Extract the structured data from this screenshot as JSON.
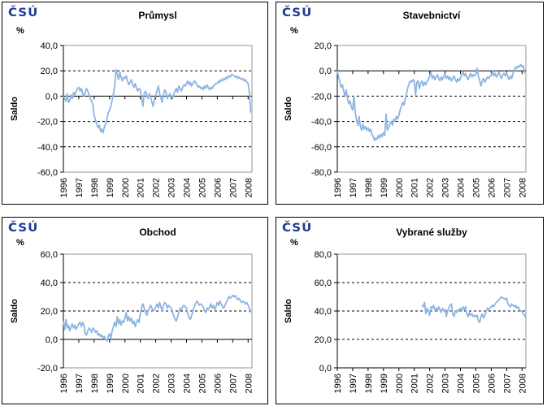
{
  "logo_text": "ČSÚ",
  "colors": {
    "line": "#8DB4E2",
    "logo": "#1F3A93",
    "plot_border": "#969696",
    "grid": "#000000",
    "axis": "#000000",
    "text": "#000000",
    "background": "#FFFFFF"
  },
  "chart_data": [
    {
      "type": "line",
      "title": "Průmysl",
      "unit": "%",
      "ylabel": "Saldo",
      "legend": "none",
      "grid": "horizontal-dashed",
      "ylim": [
        -60,
        40
      ],
      "yticks": [
        40,
        20,
        0,
        -20,
        -40,
        -60
      ],
      "ytick_labels": [
        "40,0",
        "20,0",
        "0,0",
        "-20,0",
        "-40,0",
        "-60,0"
      ],
      "xlim": [
        1996,
        2008.25
      ],
      "xticks": [
        1996,
        1997,
        1998,
        1999,
        2000,
        2001,
        2002,
        2003,
        2004,
        2005,
        2006,
        2007,
        2008
      ],
      "xtick_labels": [
        "1996",
        "1997",
        "1998",
        "1999",
        "2000",
        "2001",
        "2002",
        "2003",
        "2004",
        "2005",
        "2006",
        "2007",
        "2008"
      ],
      "series": [
        {
          "name": "Saldo (%)",
          "start": 1996.0,
          "step_years": 0.0833333,
          "values": [
            0,
            -2,
            -4,
            2,
            -5,
            -3,
            1,
            -2,
            3,
            1,
            4,
            6,
            7,
            4,
            6,
            2,
            0,
            3,
            6,
            4,
            1,
            -2,
            -4,
            -7,
            -15,
            -19,
            -22,
            -25,
            -23,
            -28,
            -26,
            -29,
            -24,
            -22,
            -18,
            -13,
            -11,
            -8,
            -3,
            2,
            8,
            21,
            17,
            13,
            19,
            15,
            12,
            15,
            14,
            16,
            12,
            9,
            11,
            13,
            9,
            7,
            10,
            6,
            4,
            6,
            5,
            -2,
            -8,
            2,
            4,
            1,
            -2,
            2,
            -1,
            -5,
            -8,
            -2,
            1,
            4,
            8,
            2,
            -1,
            -5,
            1,
            5,
            3,
            -2,
            0,
            2,
            0,
            -2,
            1,
            4,
            6,
            3,
            8,
            6,
            4,
            7,
            9,
            8,
            10,
            12,
            9,
            11,
            8,
            10,
            12,
            11,
            9,
            7,
            8,
            6,
            7,
            5,
            8,
            6,
            9,
            7,
            5,
            7,
            6,
            8,
            9,
            10,
            10,
            12,
            11,
            13,
            12,
            14,
            13,
            15,
            14,
            16,
            15,
            17,
            17,
            16,
            15,
            16,
            14,
            15,
            14,
            13,
            14,
            12,
            13,
            11,
            10,
            3,
            -13
          ]
        }
      ]
    },
    {
      "type": "line",
      "title": "Stavebnictví",
      "unit": "%",
      "ylabel": "Saldo",
      "legend": "none",
      "grid": "horizontal-dashed",
      "ylim": [
        -80,
        20
      ],
      "yticks": [
        20,
        0,
        -20,
        -40,
        -60,
        -80
      ],
      "ytick_labels": [
        "20,0",
        "0,0",
        "-20,0",
        "-40,0",
        "-60,0",
        "-80,0"
      ],
      "xlim": [
        1996,
        2008.25
      ],
      "xticks": [
        1996,
        1997,
        1998,
        1999,
        2000,
        2001,
        2002,
        2003,
        2004,
        2005,
        2006,
        2007,
        2008
      ],
      "xtick_labels": [
        "1996",
        "1997",
        "1998",
        "1999",
        "2000",
        "2001",
        "2002",
        "2003",
        "2004",
        "2005",
        "2006",
        "2007",
        "2008"
      ],
      "series": [
        {
          "name": "Saldo (%)",
          "start": 1996.0,
          "step_years": 0.0833333,
          "values": [
            0,
            -5,
            -9,
            -13,
            -11,
            -16,
            -20,
            -15,
            -22,
            -26,
            -24,
            -29,
            -31,
            -20,
            -33,
            -39,
            -43,
            -36,
            -44,
            -47,
            -42,
            -46,
            -44,
            -47,
            -45,
            -48,
            -46,
            -50,
            -52,
            -55,
            -53,
            -54,
            -51,
            -53,
            -50,
            -52,
            -49,
            -51,
            -34,
            -47,
            -45,
            -42,
            -40,
            -43,
            -38,
            -40,
            -36,
            -38,
            -35,
            -31,
            -28,
            -25,
            -27,
            -22,
            -18,
            -13,
            -10,
            -8,
            -9,
            -7,
            -8,
            -19,
            -9,
            -8,
            -14,
            -10,
            -8,
            -12,
            -9,
            -11,
            -8,
            -7,
            -4,
            -1,
            -6,
            -4,
            -7,
            -5,
            -3,
            -6,
            -8,
            -5,
            -7,
            -4,
            -3,
            -6,
            -4,
            -7,
            -5,
            -8,
            -6,
            -4,
            -7,
            -9,
            -6,
            -8,
            -6,
            -3,
            -1,
            -4,
            -2,
            -5,
            -7,
            -4,
            -2,
            -5,
            -3,
            -4,
            -3,
            2,
            -4,
            -8,
            -12,
            -8,
            -6,
            -9,
            -7,
            -5,
            -6,
            -4,
            -4,
            0,
            -4,
            -2,
            -5,
            -3,
            -1,
            -4,
            -6,
            -3,
            -2,
            -4,
            -2,
            -5,
            -7,
            -4,
            -6,
            -2,
            1,
            3,
            2,
            4,
            3,
            5,
            3,
            4,
            -2
          ]
        }
      ]
    },
    {
      "type": "line",
      "title": "Obchod",
      "unit": "%",
      "ylabel": "Saldo",
      "legend": "none",
      "grid": "horizontal-dashed",
      "ylim": [
        -20,
        60
      ],
      "yticks": [
        60,
        40,
        20,
        0,
        -20
      ],
      "ytick_labels": [
        "60,0",
        "40,0",
        "20,0",
        "0,0",
        "-20,0"
      ],
      "xlim": [
        1996,
        2008.25
      ],
      "xticks": [
        1996,
        1997,
        1998,
        1999,
        2000,
        2001,
        2002,
        2003,
        2004,
        2005,
        2006,
        2007,
        2008
      ],
      "xtick_labels": [
        "1996",
        "1997",
        "1998",
        "1999",
        "2000",
        "2001",
        "2002",
        "2003",
        "2004",
        "2005",
        "2006",
        "2007",
        "2008"
      ],
      "series": [
        {
          "name": "Saldo (%)",
          "start": 1996.0,
          "step_years": 0.0833333,
          "values": [
            13,
            7,
            14,
            8,
            10,
            6,
            9,
            11,
            8,
            10,
            7,
            9,
            11,
            12,
            9,
            12,
            10,
            4,
            3,
            6,
            8,
            7,
            5,
            8,
            7,
            5,
            6,
            3,
            4,
            2,
            3,
            1,
            2,
            0,
            -1,
            2,
            4,
            1,
            6,
            9,
            12,
            9,
            16,
            11,
            14,
            10,
            13,
            12,
            15,
            19,
            13,
            16,
            13,
            15,
            11,
            13,
            9,
            12,
            14,
            12,
            18,
            23,
            25,
            22,
            19,
            17,
            20,
            22,
            24,
            22,
            20,
            21,
            23,
            25,
            22,
            26,
            23,
            20,
            24,
            26,
            25,
            22,
            24,
            23,
            22,
            19,
            17,
            14,
            13,
            16,
            19,
            22,
            21,
            23,
            24,
            23,
            22,
            18,
            15,
            14,
            17,
            20,
            23,
            25,
            27,
            26,
            24,
            25,
            24,
            23,
            20,
            19,
            22,
            21,
            23,
            25,
            22,
            24,
            21,
            23,
            26,
            24,
            27,
            25,
            23,
            22,
            24,
            26,
            28,
            30,
            29,
            30,
            31,
            30,
            31,
            29,
            28,
            29,
            27,
            26,
            27,
            26,
            25,
            26,
            24,
            22,
            19
          ]
        }
      ]
    },
    {
      "type": "line",
      "title": "Vybrané služby",
      "unit": "%",
      "ylabel": "Saldo",
      "legend": "none",
      "grid": "horizontal-dashed",
      "ylim": [
        0,
        80
      ],
      "yticks": [
        80,
        60,
        40,
        20,
        0
      ],
      "ytick_labels": [
        "80,0",
        "60,0",
        "40,0",
        "20,0",
        "0,0"
      ],
      "xlim": [
        1996,
        2008.25
      ],
      "xticks": [
        1996,
        1997,
        1998,
        1999,
        2000,
        2001,
        2002,
        2003,
        2004,
        2005,
        2006,
        2007,
        2008
      ],
      "xtick_labels": [
        "1996",
        "1997",
        "1998",
        "1999",
        "2000",
        "2001",
        "2002",
        "2003",
        "2004",
        "2005",
        "2006",
        "2007",
        "2008"
      ],
      "series": [
        {
          "name": "Saldo (%)",
          "start": 2001.5,
          "step_years": 0.0833333,
          "values": [
            44,
            43,
            46,
            38,
            42,
            40,
            37,
            43,
            42,
            44,
            41,
            42,
            40,
            43,
            41,
            39,
            42,
            40,
            41,
            36,
            40,
            42,
            44,
            45,
            38,
            36,
            40,
            39,
            41,
            40,
            42,
            40,
            43,
            41,
            43,
            38,
            36,
            39,
            37,
            38,
            36,
            37,
            36,
            37,
            33,
            32,
            36,
            38,
            35,
            37,
            40,
            42,
            41,
            42,
            43,
            44,
            43,
            45,
            46,
            47,
            48,
            49,
            50,
            49,
            49,
            48,
            49,
            45,
            44,
            43,
            45,
            44,
            43,
            44,
            42,
            43,
            41,
            40,
            40,
            38,
            37,
            35
          ]
        }
      ]
    }
  ]
}
